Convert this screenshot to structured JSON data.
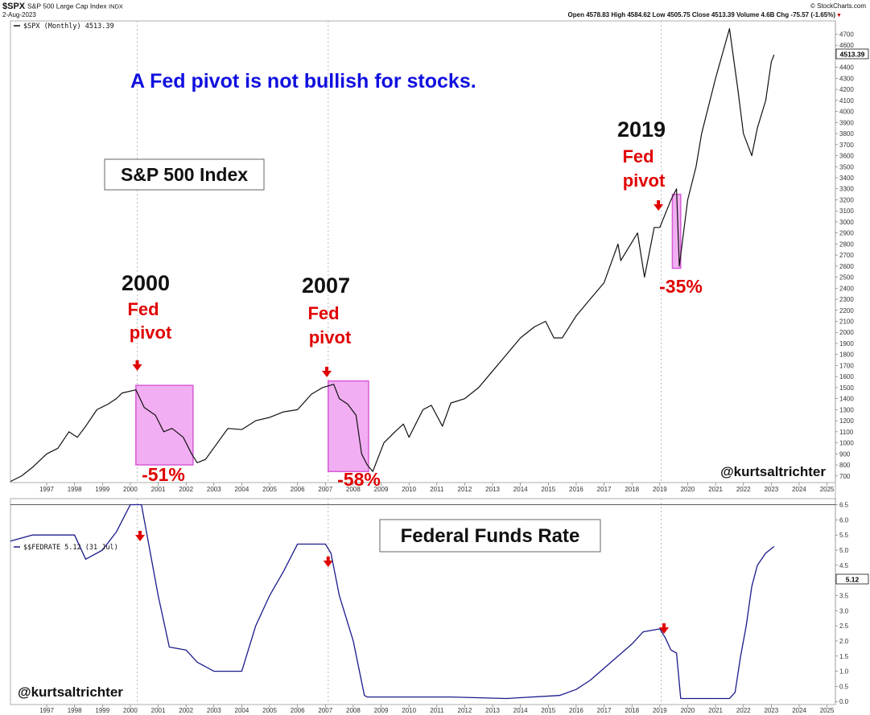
{
  "header": {
    "symbol": "$SPX",
    "name": "S&P 500 Large Cap Index",
    "exchange": "INDX",
    "date": "2-Aug-2023",
    "source": "© StockCharts.com",
    "quote": "Open 4578.83  High 4584.62  Low 4505.75  Close 4513.39  Volume 4.6B  Chg -75.57 (-1.65%)",
    "down_arrow": "▼"
  },
  "annotations": {
    "headline": "A Fed pivot is not bullish for stocks.",
    "index_box": "S&P 500 Index",
    "rate_box": "Federal Funds Rate",
    "handle": "@kurtsaltrichter",
    "pivot_word_1": "Fed",
    "pivot_word_2": "pivot",
    "pivots": [
      {
        "year_label": "2000",
        "drawdown": "-51%"
      },
      {
        "year_label": "2007",
        "drawdown": "-58%"
      },
      {
        "year_label": "2019",
        "drawdown": "-35%"
      }
    ]
  },
  "colors": {
    "price_line": "#111111",
    "rate_line": "#1a1a8c",
    "highlight_fill": "#f0a0f0",
    "highlight_stroke": "#d040d0",
    "arrow": "#e00000",
    "drawdown_text": "#e00000",
    "headline": "#1010e0"
  },
  "chart_data": [
    {
      "type": "line",
      "legend": "$SPX (Monthly) 4513.39",
      "last_value_label": "4513.39",
      "x_tick_labels": [
        "1997",
        "1998",
        "1999",
        "2000",
        "2001",
        "2002",
        "2003",
        "2004",
        "2005",
        "2006",
        "2007",
        "2008",
        "2009",
        "2010",
        "2011",
        "2012",
        "2013",
        "2014",
        "2015",
        "2016",
        "2017",
        "2018",
        "2019",
        "2020",
        "2021",
        "2022",
        "2023",
        "2024",
        "2025"
      ],
      "y_tick_labels": [
        700,
        800,
        900,
        1000,
        1100,
        1200,
        1300,
        1400,
        1500,
        1600,
        1700,
        1800,
        1900,
        2000,
        2100,
        2200,
        2300,
        2400,
        2500,
        2600,
        2700,
        2800,
        2900,
        3000,
        3100,
        3200,
        3300,
        3400,
        3500,
        3600,
        3700,
        3800,
        3900,
        4000,
        4100,
        4200,
        4300,
        4400,
        4500,
        4600,
        4700
      ],
      "xlim": [
        1996.2,
        2025.8
      ],
      "ylim": [
        640,
        4820
      ],
      "series": [
        {
          "x": [
            1996.2,
            1996.6,
            1997.0,
            1997.5,
            1997.9,
            1998.3,
            1998.6,
            1998.9,
            1999.3,
            1999.7,
            2000.0,
            2000.2,
            2000.7,
            2001.0,
            2001.4,
            2001.7,
            2002.0,
            2002.4,
            2002.7,
            2002.9,
            2003.2,
            2003.6,
            2004.0,
            2004.5,
            2005.0,
            2005.5,
            2006.0,
            2006.5,
            2007.0,
            2007.4,
            2007.8,
            2008.0,
            2008.3,
            2008.6,
            2008.8,
            2009.0,
            2009.2,
            2009.6,
            2010.0,
            2010.3,
            2010.5,
            2011.0,
            2011.3,
            2011.7,
            2012.0,
            2012.5,
            2013.0,
            2013.5,
            2014.0,
            2014.5,
            2015.0,
            2015.4,
            2015.7,
            2016.0,
            2016.5,
            2017.0,
            2017.5,
            2018.0,
            2018.1,
            2018.7,
            2018.95,
            2019.3,
            2019.5,
            2019.9,
            2020.1,
            2020.2,
            2020.5,
            2020.8,
            2021.0,
            2021.5,
            2022.0,
            2022.3,
            2022.5,
            2022.8,
            2023.0,
            2023.3,
            2023.5,
            2023.6
          ],
          "y": [
            650,
            700,
            780,
            900,
            950,
            1100,
            1050,
            1150,
            1300,
            1350,
            1400,
            1450,
            1480,
            1320,
            1250,
            1100,
            1130,
            1050,
            900,
            820,
            850,
            990,
            1130,
            1120,
            1200,
            1230,
            1280,
            1300,
            1440,
            1500,
            1530,
            1400,
            1350,
            1250,
            900,
            800,
            740,
            1000,
            1100,
            1170,
            1050,
            1300,
            1340,
            1150,
            1360,
            1400,
            1500,
            1650,
            1800,
            1950,
            2050,
            2100,
            1950,
            1950,
            2150,
            2300,
            2450,
            2800,
            2650,
            2900,
            2500,
            2950,
            2950,
            3200,
            3300,
            2600,
            3200,
            3500,
            3800,
            4300,
            4750,
            4200,
            3800,
            3600,
            3850,
            4100,
            4450,
            4513
          ]
        }
      ]
    },
    {
      "type": "line",
      "legend": "$$FEDRATE 5.12 (31 Jul)",
      "last_value_label": "5.12",
      "x_tick_labels": [
        "1997",
        "1998",
        "1999",
        "2000",
        "2001",
        "2002",
        "2003",
        "2004",
        "2005",
        "2006",
        "2007",
        "2008",
        "2009",
        "2010",
        "2011",
        "2012",
        "2013",
        "2014",
        "2015",
        "2016",
        "2017",
        "2018",
        "2019",
        "2020",
        "2021",
        "2022",
        "2023",
        "2024",
        "2025"
      ],
      "y_tick_labels": [
        "0.0",
        "0.5",
        "1.0",
        "1.5",
        "2.0",
        "2.5",
        "3.0",
        "3.5",
        "4.0",
        "4.5",
        "5.0",
        "5.5",
        "6.0",
        "6.5"
      ],
      "xlim": [
        1996.2,
        2025.8
      ],
      "ylim": [
        -0.1,
        6.7
      ],
      "series": [
        {
          "x": [
            1996.2,
            1997.0,
            1998.5,
            1998.9,
            1999.5,
            2000.0,
            2000.5,
            2000.9,
            2001.2,
            2001.5,
            2001.9,
            2002.5,
            2002.9,
            2003.5,
            2004.5,
            2005.0,
            2005.5,
            2006.0,
            2006.5,
            2007.5,
            2007.7,
            2008.0,
            2008.5,
            2008.9,
            2009.0,
            2010.0,
            2012.0,
            2014.0,
            2015.9,
            2016.5,
            2017.0,
            2017.5,
            2018.0,
            2018.5,
            2018.9,
            2019.5,
            2019.7,
            2019.9,
            2020.1,
            2020.25,
            2020.5,
            2022.0,
            2022.2,
            2022.4,
            2022.6,
            2022.8,
            2023.0,
            2023.3,
            2023.6
          ],
          "y": [
            5.3,
            5.5,
            5.5,
            4.7,
            5.0,
            5.6,
            6.5,
            6.5,
            5.0,
            3.5,
            1.8,
            1.7,
            1.3,
            1.0,
            1.0,
            2.5,
            3.5,
            4.3,
            5.2,
            5.2,
            4.9,
            3.5,
            2.0,
            0.2,
            0.15,
            0.15,
            0.15,
            0.1,
            0.2,
            0.4,
            0.7,
            1.1,
            1.5,
            1.9,
            2.3,
            2.4,
            2.1,
            1.7,
            1.6,
            0.1,
            0.1,
            0.1,
            0.3,
            1.5,
            2.5,
            3.8,
            4.5,
            4.9,
            5.12
          ]
        }
      ]
    }
  ]
}
